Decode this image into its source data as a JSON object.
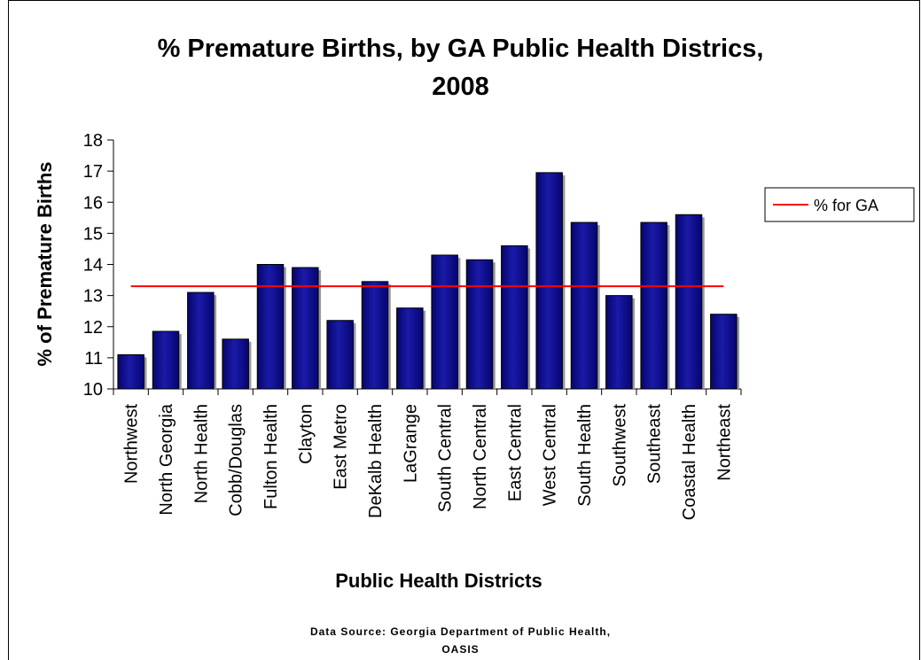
{
  "chart_data": {
    "type": "bar",
    "title_line1": "% Premature Births, by GA Public Health Districs,",
    "title_line2": "2008",
    "xlabel": "Public Health Districts",
    "ylabel": "% of Premature Births",
    "ylim": [
      10,
      18
    ],
    "yticks": [
      "10",
      "11",
      "12",
      "13",
      "14",
      "15",
      "16",
      "17",
      "18"
    ],
    "categories": [
      "Northwest",
      "North Georgia",
      "North Health",
      "Cobb/Douglas",
      "Fulton Health",
      "Clayton",
      "East Metro",
      "DeKalb Health",
      "LaGrange",
      "South Central",
      "North Central",
      "East Central",
      "West Central",
      "South Health",
      "Southwest",
      "Southeast",
      "Coastal Health",
      "Northeast"
    ],
    "values": [
      11.1,
      11.85,
      13.1,
      11.6,
      14.0,
      13.9,
      12.2,
      13.45,
      12.6,
      14.3,
      14.15,
      14.6,
      16.95,
      15.35,
      13.0,
      15.35,
      15.6,
      12.4
    ],
    "reference_line": {
      "name": "% for GA",
      "value": 13.3,
      "color": "#ff0000"
    },
    "bar_color": "#1a1aa8",
    "legend_position": "right",
    "grid": false
  },
  "source": {
    "line1": "Data Source:  Georgia Department of Public Health,",
    "line2": "OASIS"
  }
}
